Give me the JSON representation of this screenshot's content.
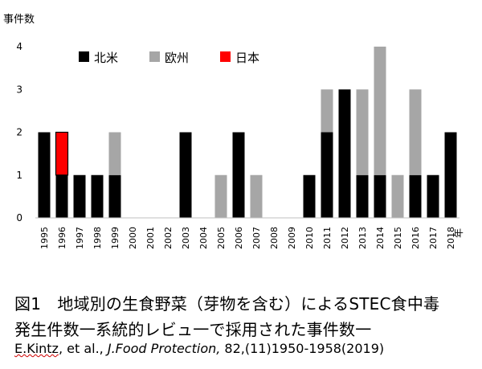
{
  "chart_data": {
    "type": "bar",
    "stacked": true,
    "ylabel": "事件数",
    "xlabel": "年",
    "ylim": [
      0,
      4
    ],
    "yticks": [
      "0",
      "1",
      "2",
      "3",
      "4"
    ],
    "grid": false,
    "legend_position": "top-left",
    "categories": [
      "1995",
      "1996",
      "1997",
      "1998",
      "1999",
      "2000",
      "2001",
      "2002",
      "2003",
      "2004",
      "2005",
      "2006",
      "2007",
      "2008",
      "2009",
      "2010",
      "2011",
      "2012",
      "2013",
      "2014",
      "2015",
      "2016",
      "2017",
      "2018"
    ],
    "series": [
      {
        "name": "北米",
        "color": "#000000",
        "values": [
          2,
          1,
          1,
          1,
          1,
          0,
          0,
          0,
          2,
          0,
          0,
          2,
          0,
          0,
          0,
          1,
          2,
          3,
          1,
          1,
          0,
          1,
          1,
          2
        ]
      },
      {
        "name": "欧州",
        "color": "#a6a6a6",
        "values": [
          0,
          0,
          0,
          0,
          1,
          0,
          0,
          0,
          0,
          0,
          1,
          0,
          1,
          0,
          0,
          0,
          1,
          0,
          2,
          3,
          1,
          2,
          0,
          0
        ]
      },
      {
        "name": "日本",
        "color": "#ff0000",
        "values": [
          0,
          1,
          0,
          0,
          0,
          0,
          0,
          0,
          0,
          0,
          0,
          0,
          0,
          0,
          0,
          0,
          0,
          0,
          0,
          0,
          0,
          0,
          0,
          0
        ]
      }
    ]
  },
  "caption": {
    "line1": "図1　地域別の生食野菜（芽物を含む）によるSTEC食中毒",
    "line2": "発生件数一系統的レビュ一で採用された事件数一",
    "author": "E.Kintz",
    "etal": ", et al., ",
    "journal": "J.Food Protection,",
    "ref": " 82,(11)1950-1958(2019)"
  }
}
